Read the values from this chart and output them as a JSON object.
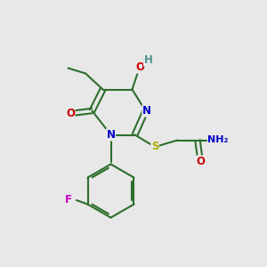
{
  "bg_color": "#e8e8e8",
  "bond_color": "#2d6e2d",
  "colors": {
    "N": "#0000cc",
    "O": "#cc0000",
    "S": "#aaaa00",
    "F": "#cc00cc",
    "C_bond": "#2d6e2d",
    "H": "#4a9090"
  },
  "lw": 1.5,
  "figsize": [
    3.0,
    3.0
  ],
  "dpi": 100
}
